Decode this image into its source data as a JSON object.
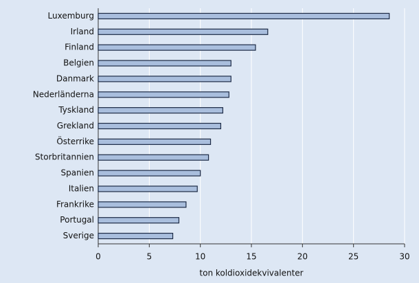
{
  "chart_data": {
    "type": "barh",
    "x_label": "ton koldioxidekvivalenter",
    "categories": [
      "Luxemburg",
      "Irland",
      "Finland",
      "Belgien",
      "Danmark",
      "Nederländerna",
      "Tyskland",
      "Grekland",
      "Österrike",
      "Storbritannien",
      "Spanien",
      "Italien",
      "Frankrike",
      "Portugal",
      "Sverige"
    ],
    "values": [
      28.5,
      16.6,
      15.4,
      13.0,
      13.0,
      12.8,
      12.2,
      12.0,
      11.0,
      10.8,
      10.0,
      9.7,
      8.6,
      7.9,
      7.3
    ],
    "color": "#a9bedd",
    "xlim": [
      0,
      30
    ],
    "xticks": [
      0,
      5,
      10,
      15,
      20,
      25,
      30
    ],
    "grid": true
  }
}
